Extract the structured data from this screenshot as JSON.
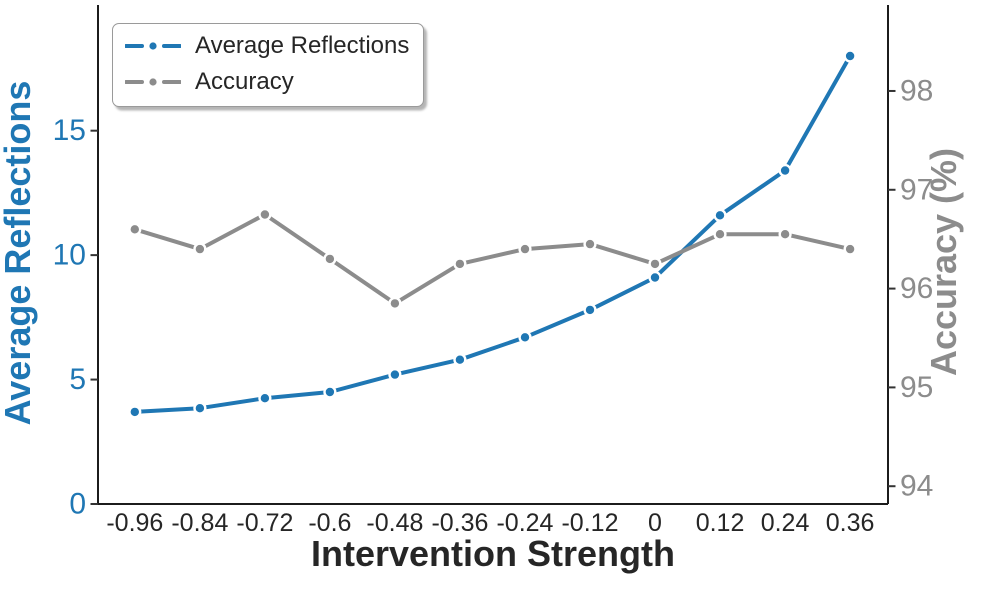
{
  "chart_data": {
    "type": "line",
    "title": "",
    "xlabel": "Intervention Strength",
    "x": [
      -0.96,
      -0.84,
      -0.72,
      -0.6,
      -0.48,
      -0.36,
      -0.24,
      -0.12,
      0,
      0.12,
      0.24,
      0.36
    ],
    "x_tick_labels": [
      "-0.96",
      "-0.84",
      "-0.72",
      "-0.6",
      "-0.48",
      "-0.36",
      "-0.24",
      "-0.12",
      "0",
      "0.12",
      "0.24",
      "0.36"
    ],
    "xlim": [
      -1.028,
      0.43
    ],
    "grid": false,
    "legend_position": "upper left",
    "series": [
      {
        "name": "Average Reflections",
        "axis": "left",
        "color": "#1f77b4",
        "values": [
          3.7,
          3.85,
          4.25,
          4.5,
          5.2,
          5.8,
          6.7,
          7.8,
          9.1,
          11.6,
          13.4,
          18.0
        ]
      },
      {
        "name": "Accuracy",
        "axis": "right",
        "color": "#8c8c8c",
        "values": [
          96.6,
          96.4,
          96.75,
          96.3,
          95.85,
          96.25,
          96.4,
          96.45,
          96.25,
          96.55,
          96.55,
          96.4
        ]
      }
    ],
    "left_axis": {
      "label": "Average Reflections",
      "color": "#1f77b4",
      "ticks": [
        0,
        5,
        10,
        15
      ],
      "tick_labels": [
        "0",
        "5",
        "10",
        "15"
      ],
      "ylim": [
        0,
        20.05
      ]
    },
    "right_axis": {
      "label": "Accuracy (%)",
      "color": "#8c8c8c",
      "ticks": [
        94,
        95,
        96,
        97,
        98
      ],
      "tick_labels": [
        "94",
        "95",
        "96",
        "97",
        "98"
      ],
      "ylim": [
        93.82,
        98.87
      ]
    }
  },
  "colors": {
    "x_text": "#262626",
    "spine": "#1c1c1c",
    "tick_mark": "#333333",
    "background": "#ffffff"
  }
}
